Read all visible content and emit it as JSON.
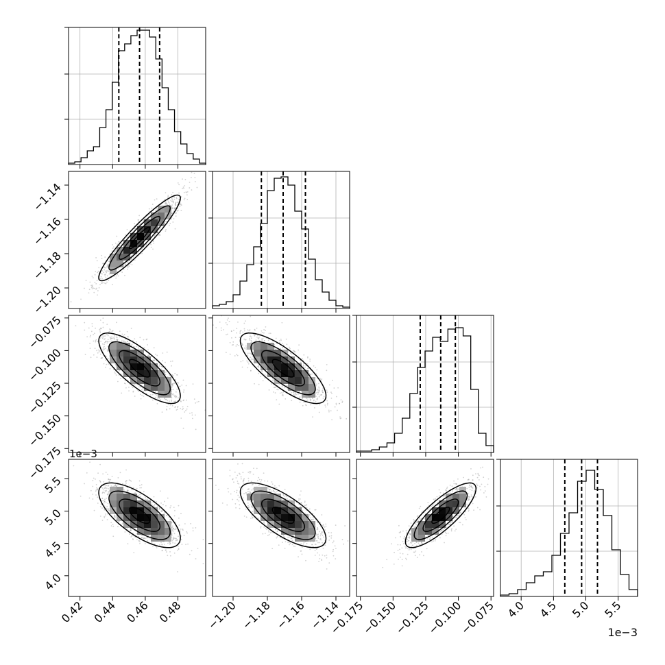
{
  "chart_data": {
    "type": "corner",
    "grid": true,
    "parameters": [
      {
        "range": [
          0.413,
          0.497
        ],
        "ticks": [
          0.42,
          0.44,
          0.46,
          0.48
        ],
        "tick_labels": [
          "0.42",
          "0.44",
          "0.46",
          "0.48"
        ],
        "quantiles": [
          0.4438,
          0.4565,
          0.4688
        ],
        "hist_density": [
          0.01,
          0.02,
          0.05,
          0.1,
          0.13,
          0.27,
          0.4,
          0.6,
          0.83,
          0.88,
          0.94,
          0.98,
          0.98,
          0.93,
          0.77,
          0.56,
          0.4,
          0.24,
          0.15,
          0.08,
          0.04,
          0.01
        ],
        "mean": 0.4565,
        "sd": 0.0125
      },
      {
        "range": [
          -1.212,
          -1.132
        ],
        "ticks": [
          -1.2,
          -1.18,
          -1.16,
          -1.14
        ],
        "tick_labels": [
          "−1.20",
          "−1.18",
          "−1.16",
          "−1.14"
        ],
        "quantiles": [
          -1.1835,
          -1.1708,
          -1.1578
        ],
        "hist_density": [
          0.02,
          0.03,
          0.05,
          0.1,
          0.2,
          0.32,
          0.45,
          0.62,
          0.86,
          0.95,
          0.96,
          0.9,
          0.71,
          0.58,
          0.36,
          0.21,
          0.12,
          0.06,
          0.02,
          0.01
        ],
        "mean": -1.1708,
        "sd": 0.0125
      },
      {
        "range": [
          -0.178,
          -0.073
        ],
        "ticks": [
          -0.175,
          -0.15,
          -0.125,
          -0.1,
          -0.075
        ],
        "tick_labels": [
          "−0.175",
          "−0.150",
          "−0.125",
          "−0.100",
          "−0.075"
        ],
        "quantiles": [
          -0.1292,
          -0.1135,
          -0.1023
        ],
        "hist_density": [
          0.01,
          0.01,
          0.02,
          0.04,
          0.07,
          0.14,
          0.25,
          0.43,
          0.62,
          0.74,
          0.84,
          0.81,
          0.9,
          0.91,
          0.85,
          0.46,
          0.14,
          0.05
        ],
        "mean": -0.1135,
        "sd": 0.0135
      },
      {
        "range": [
          3.68,
          5.8
        ],
        "ticks": [
          4.0,
          4.5,
          5.0,
          5.5
        ],
        "tick_labels": [
          "4.0",
          "4.5",
          "5.0",
          "5.5"
        ],
        "quantiles": [
          4.675,
          4.935,
          5.18
        ],
        "hist_density": [
          0.01,
          0.02,
          0.05,
          0.1,
          0.15,
          0.18,
          0.3,
          0.46,
          0.61,
          0.84,
          0.92,
          0.78,
          0.59,
          0.34,
          0.16,
          0.05
        ],
        "mean": 4.935,
        "sd": 0.25,
        "scale_label": "1e−3"
      }
    ],
    "correlations": [
      {
        "i": 1,
        "j": 0,
        "r": 0.93
      },
      {
        "i": 2,
        "j": 0,
        "r": -0.78
      },
      {
        "i": 2,
        "j": 1,
        "r": -0.78
      },
      {
        "i": 3,
        "j": 0,
        "r": -0.7
      },
      {
        "i": 3,
        "j": 1,
        "r": -0.72
      },
      {
        "i": 3,
        "j": 2,
        "r": 0.82
      }
    ],
    "contour_levels": [
      0.5,
      1.0,
      1.5,
      2.0
    ],
    "colors": {
      "histogram": "#000000",
      "contour": "#000000",
      "points": "#9a9a9a",
      "grid": "#b0b0b0"
    }
  }
}
